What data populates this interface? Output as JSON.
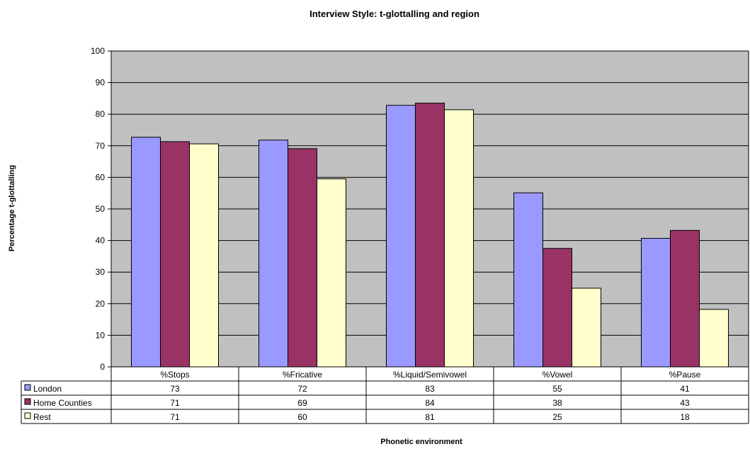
{
  "chart_data": {
    "type": "bar",
    "title": "Interview Style: t-glottalling and region",
    "xlabel": "Phonetic environment",
    "ylabel": "Percentage t-glottalling",
    "ylim": [
      0,
      100
    ],
    "yticks": [
      0,
      10,
      20,
      30,
      40,
      50,
      60,
      70,
      80,
      90,
      100
    ],
    "grid": true,
    "legend": "left (in data table)",
    "categories": [
      "%Stops",
      "%Fricative",
      "%Liquid/Semivowel",
      "%Vowel",
      "%Pause"
    ],
    "series": [
      {
        "name": "London",
        "color": "#9999ff",
        "values": [
          72.7,
          71.8,
          82.8,
          55.1,
          40.7
        ],
        "table_values": [
          "73",
          "72",
          "83",
          "55",
          "41"
        ]
      },
      {
        "name": "Home Counties",
        "color": "#993366",
        "values": [
          71.3,
          69.1,
          83.5,
          37.5,
          43.2
        ],
        "table_values": [
          "71",
          "69",
          "84",
          "38",
          "43"
        ]
      },
      {
        "name": "Rest",
        "color": "#ffffcc",
        "values": [
          70.6,
          59.5,
          81.4,
          24.9,
          18.2
        ],
        "table_values": [
          "71",
          "60",
          "81",
          "25",
          "18"
        ]
      }
    ],
    "plot_background": "#c0c0c0"
  }
}
